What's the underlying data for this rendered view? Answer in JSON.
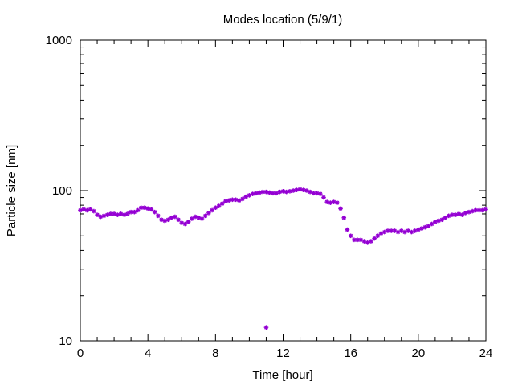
{
  "chart_data": {
    "type": "scatter",
    "title": "Modes location (5/9/1)",
    "xlabel": "Time [hour]",
    "ylabel": "Particle size [nm]",
    "xlim": [
      0,
      24
    ],
    "ylim": [
      10,
      1000
    ],
    "yscale": "log",
    "grid": false,
    "legend": "none",
    "marker_color": "#9400d3",
    "x_ticks": [
      "0",
      "4",
      "8",
      "12",
      "16",
      "20",
      "24"
    ],
    "y_ticks": [
      "10",
      "100",
      "1000"
    ],
    "series": [
      {
        "points": [
          [
            0.0,
            74
          ],
          [
            0.2,
            75
          ],
          [
            0.4,
            74
          ],
          [
            0.6,
            75
          ],
          [
            0.8,
            73
          ],
          [
            1.0,
            69
          ],
          [
            1.2,
            67
          ],
          [
            1.4,
            68
          ],
          [
            1.6,
            69
          ],
          [
            1.8,
            70
          ],
          [
            2.0,
            70
          ],
          [
            2.2,
            69
          ],
          [
            2.4,
            70
          ],
          [
            2.6,
            69
          ],
          [
            2.8,
            70
          ],
          [
            3.0,
            72
          ],
          [
            3.2,
            72
          ],
          [
            3.4,
            74
          ],
          [
            3.6,
            77
          ],
          [
            3.8,
            77
          ],
          [
            4.0,
            76
          ],
          [
            4.2,
            75
          ],
          [
            4.4,
            72
          ],
          [
            4.6,
            68
          ],
          [
            4.8,
            64
          ],
          [
            5.0,
            63
          ],
          [
            5.2,
            64
          ],
          [
            5.4,
            66
          ],
          [
            5.6,
            67
          ],
          [
            5.8,
            64
          ],
          [
            6.0,
            61
          ],
          [
            6.2,
            60
          ],
          [
            6.4,
            62
          ],
          [
            6.6,
            65
          ],
          [
            6.8,
            67
          ],
          [
            7.0,
            66
          ],
          [
            7.2,
            65
          ],
          [
            7.4,
            68
          ],
          [
            7.6,
            71
          ],
          [
            7.8,
            74
          ],
          [
            8.0,
            77
          ],
          [
            8.2,
            79
          ],
          [
            8.4,
            82
          ],
          [
            8.6,
            85
          ],
          [
            8.8,
            86
          ],
          [
            9.0,
            87
          ],
          [
            9.2,
            87
          ],
          [
            9.4,
            86
          ],
          [
            9.6,
            88
          ],
          [
            9.8,
            91
          ],
          [
            10.0,
            93
          ],
          [
            10.2,
            95
          ],
          [
            10.4,
            96
          ],
          [
            10.6,
            97
          ],
          [
            10.8,
            98
          ],
          [
            11.0,
            98
          ],
          [
            11.2,
            97
          ],
          [
            11.4,
            96
          ],
          [
            11.6,
            96
          ],
          [
            11.8,
            98
          ],
          [
            12.0,
            99
          ],
          [
            12.2,
            98
          ],
          [
            12.4,
            99
          ],
          [
            12.6,
            100
          ],
          [
            12.8,
            101
          ],
          [
            13.0,
            102
          ],
          [
            13.2,
            101
          ],
          [
            13.4,
            100
          ],
          [
            13.6,
            98
          ],
          [
            13.8,
            96
          ],
          [
            14.0,
            96
          ],
          [
            14.2,
            95
          ],
          [
            14.4,
            90
          ],
          [
            14.6,
            84
          ],
          [
            14.8,
            83
          ],
          [
            15.0,
            84
          ],
          [
            15.2,
            83
          ],
          [
            15.4,
            76
          ],
          [
            15.6,
            66
          ],
          [
            15.8,
            55
          ],
          [
            16.0,
            50
          ],
          [
            16.2,
            47
          ],
          [
            16.4,
            47
          ],
          [
            16.6,
            47
          ],
          [
            16.8,
            46
          ],
          [
            17.0,
            45
          ],
          [
            17.2,
            46
          ],
          [
            17.4,
            48
          ],
          [
            17.6,
            50
          ],
          [
            17.8,
            52
          ],
          [
            18.0,
            53
          ],
          [
            18.2,
            54
          ],
          [
            18.4,
            54
          ],
          [
            18.6,
            54
          ],
          [
            18.8,
            53
          ],
          [
            19.0,
            54
          ],
          [
            19.2,
            53
          ],
          [
            19.4,
            54
          ],
          [
            19.6,
            53
          ],
          [
            19.8,
            54
          ],
          [
            20.0,
            55
          ],
          [
            20.2,
            56
          ],
          [
            20.4,
            57
          ],
          [
            20.6,
            58
          ],
          [
            20.8,
            60
          ],
          [
            21.0,
            62
          ],
          [
            21.2,
            63
          ],
          [
            21.4,
            64
          ],
          [
            21.6,
            66
          ],
          [
            21.8,
            68
          ],
          [
            22.0,
            69
          ],
          [
            22.2,
            69
          ],
          [
            22.4,
            70
          ],
          [
            22.6,
            69
          ],
          [
            22.8,
            71
          ],
          [
            23.0,
            72
          ],
          [
            23.2,
            73
          ],
          [
            23.4,
            74
          ],
          [
            23.6,
            74
          ],
          [
            23.8,
            74
          ],
          [
            24.0,
            75
          ],
          [
            11.0,
            12.3
          ]
        ]
      }
    ]
  }
}
